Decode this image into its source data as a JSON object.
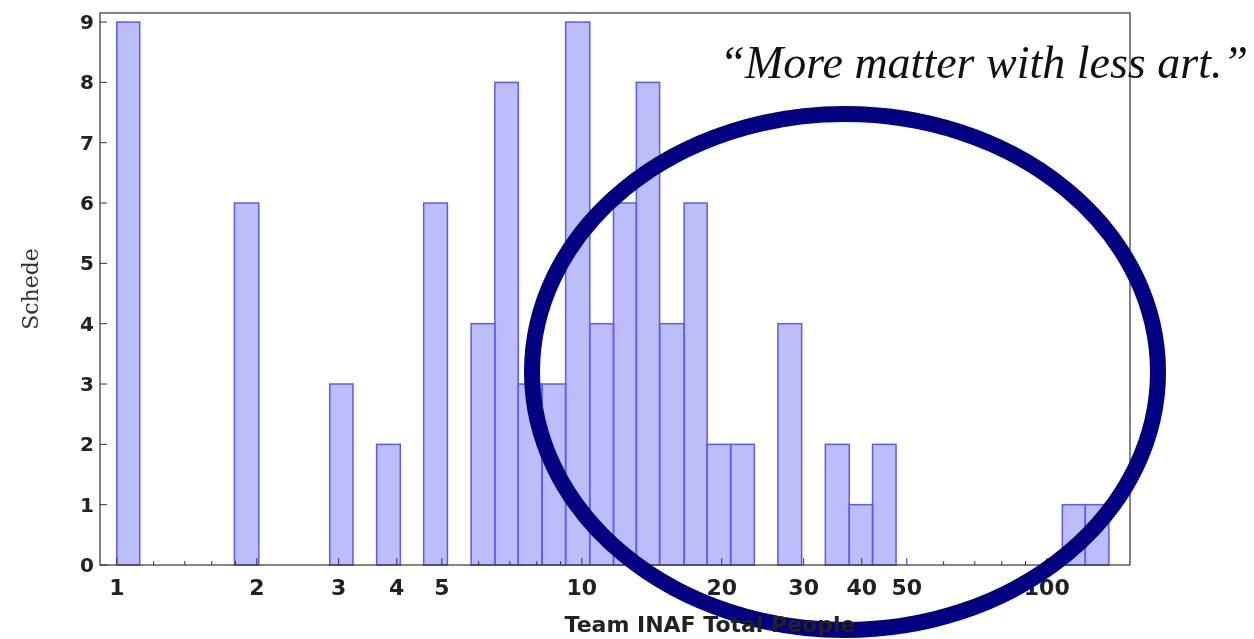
{
  "chart_data": {
    "type": "histogram",
    "xlabel": "Team INAF Total People",
    "ylabel": "Schede",
    "log": "x",
    "color": "#5b5bef",
    "bins": [
      1,
      1.12,
      1.79,
      2.02,
      2.87,
      3.22,
      3.62,
      4.07,
      4.57,
      5.14,
      5.78,
      6.5,
      7.3,
      8.21,
      9.23,
      10.4,
      11.7,
      13.1,
      14.7,
      16.6,
      18.6,
      20.9,
      23.5,
      26.4,
      29.7,
      33.4,
      37.6,
      42.2,
      47.4,
      108,
      121,
      136
    ],
    "values": [
      9,
      0,
      6,
      0,
      3,
      0,
      2,
      0,
      6,
      0,
      4,
      8,
      3,
      3,
      9,
      4,
      6,
      8,
      4,
      6,
      2,
      2,
      0,
      4,
      0,
      2,
      1,
      2,
      0,
      1,
      1
    ],
    "xlim": [
      0.92,
      151
    ],
    "ylim": [
      0,
      9.15
    ],
    "xticks": [
      1,
      {
        "value": 1.2,
        "label": null
      },
      {
        "value": 1.4,
        "label": null
      },
      {
        "value": 1.6,
        "label": null
      },
      {
        "value": 1.8,
        "label": null
      },
      2,
      3,
      4,
      5,
      {
        "value": 6,
        "label": null
      },
      {
        "value": 7,
        "label": null
      },
      {
        "value": 8,
        "label": null
      },
      {
        "value": 9,
        "label": null
      },
      10,
      20,
      30,
      40,
      50,
      {
        "value": 60,
        "label": null
      },
      {
        "value": 70,
        "label": null
      },
      {
        "value": 80,
        "label": null
      },
      {
        "value": 90,
        "label": null
      },
      100
    ],
    "yticks": [
      0,
      1,
      2,
      3,
      4,
      5,
      6,
      7,
      8,
      9
    ],
    "annotations": [
      "“More matter with less art.”"
    ]
  }
}
